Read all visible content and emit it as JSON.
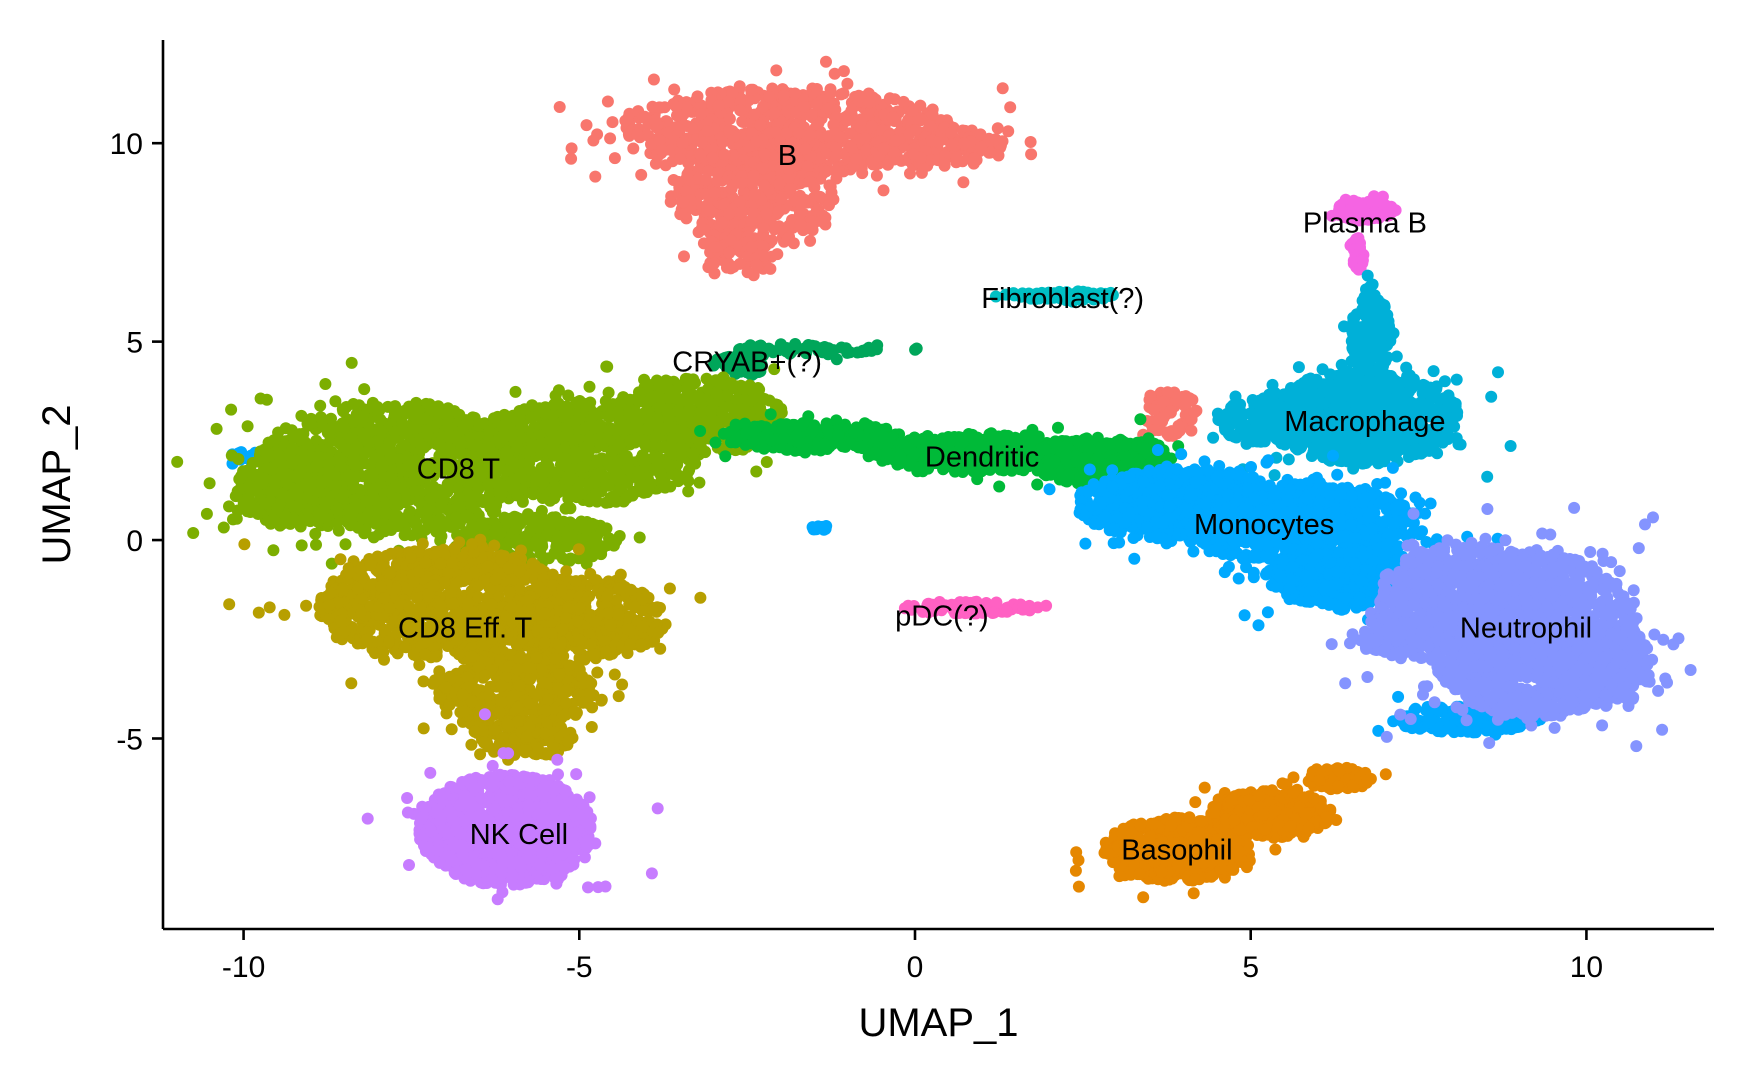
{
  "chart_data": {
    "type": "scatter",
    "xlabel": "UMAP_1",
    "ylabel": "UMAP_2",
    "xlim": [
      -11.2,
      11.9
    ],
    "ylim": [
      -9.8,
      12.6
    ],
    "xticks": [
      -10,
      -5,
      0,
      5,
      10
    ],
    "yticks": [
      -5,
      0,
      5,
      10
    ],
    "xtick_labels": [
      "-10",
      "-5",
      "0",
      "5",
      "10"
    ],
    "ytick_labels": [
      "-5",
      "0",
      "5",
      "10"
    ],
    "grid": false,
    "legend": "none",
    "clusters": [
      {
        "label": "B",
        "label_pos": [
          -1.9,
          9.7
        ],
        "color": "#F8766D",
        "points": 1400,
        "blobs": [
          {
            "cx": -1.9,
            "cy": 10.3,
            "rx": 2.5,
            "ry": 1.1
          },
          {
            "cx": -2.4,
            "cy": 8.6,
            "rx": 1.2,
            "ry": 1.2
          },
          {
            "cx": -2.6,
            "cy": 7.2,
            "rx": 0.5,
            "ry": 0.6
          },
          {
            "cx": 0.4,
            "cy": 9.9,
            "rx": 1.0,
            "ry": 0.5
          }
        ]
      },
      {
        "label": "Plasma B",
        "label_pos": [
          6.7,
          8.0
        ],
        "color": "#F564E3",
        "points": 160,
        "blobs": [
          {
            "cx": 6.7,
            "cy": 8.3,
            "rx": 0.45,
            "ry": 0.25
          },
          {
            "cx": 6.6,
            "cy": 7.2,
            "rx": 0.08,
            "ry": 0.5
          }
        ]
      },
      {
        "label": "Fibroblast(?)",
        "label_pos": [
          2.2,
          6.1
        ],
        "color": "#00BFC4",
        "points": 70,
        "blobs": [
          {
            "cx": 2.2,
            "cy": 6.15,
            "rx": 0.8,
            "ry": 0.12
          }
        ]
      },
      {
        "label": "CRYAB+(?)",
        "label_pos": [
          -2.5,
          4.5
        ],
        "color": "#00A65A",
        "points": 120,
        "blobs": [
          {
            "cx": -1.6,
            "cy": 4.8,
            "rx": 1.1,
            "ry": 0.15
          },
          {
            "cx": -2.6,
            "cy": 4.4,
            "rx": 0.4,
            "ry": 0.3
          }
        ]
      },
      {
        "label": "CD8 T",
        "label_pos": [
          -6.8,
          1.8
        ],
        "color": "#7CAE00",
        "points": 2600,
        "blobs": [
          {
            "cx": -7.8,
            "cy": 1.8,
            "rx": 2.0,
            "ry": 1.7
          },
          {
            "cx": -5.0,
            "cy": 2.2,
            "rx": 1.8,
            "ry": 1.3
          },
          {
            "cx": -3.2,
            "cy": 3.1,
            "rx": 1.3,
            "ry": 1.0
          },
          {
            "cx": -9.3,
            "cy": 1.3,
            "rx": 0.8,
            "ry": 1.0
          },
          {
            "cx": -5.6,
            "cy": 0.0,
            "rx": 1.3,
            "ry": 0.6
          }
        ]
      },
      {
        "label": "CD8 Eff. T",
        "label_pos": [
          -6.7,
          -2.2
        ],
        "color": "#B79F00",
        "points": 2000,
        "blobs": [
          {
            "cx": -7.0,
            "cy": -1.6,
            "rx": 1.9,
            "ry": 1.4
          },
          {
            "cx": -4.9,
            "cy": -2.0,
            "rx": 1.2,
            "ry": 1.0
          },
          {
            "cx": -6.0,
            "cy": -3.8,
            "rx": 1.2,
            "ry": 1.0
          },
          {
            "cx": -5.8,
            "cy": -5.0,
            "rx": 0.7,
            "ry": 0.5
          }
        ]
      },
      {
        "label": "NK Cell",
        "label_pos": [
          -5.9,
          -7.4
        ],
        "color": "#C77CFF",
        "points": 1100,
        "blobs": [
          {
            "cx": -6.1,
            "cy": -7.3,
            "rx": 1.3,
            "ry": 1.4
          }
        ]
      },
      {
        "label": "Dendritic",
        "label_pos": [
          1.0,
          2.1
        ],
        "color": "#00BA38",
        "points": 1000,
        "blobs": [
          {
            "cx": -1.5,
            "cy": 2.6,
            "rx": 1.4,
            "ry": 0.35
          },
          {
            "cx": 1.0,
            "cy": 2.2,
            "rx": 1.6,
            "ry": 0.5
          },
          {
            "cx": 2.8,
            "cy": 2.0,
            "rx": 1.1,
            "ry": 0.6
          }
        ]
      },
      {
        "label": "Macrophage",
        "label_pos": [
          6.7,
          3.0
        ],
        "color": "#00B0D8",
        "points": 1200,
        "blobs": [
          {
            "cx": 6.7,
            "cy": 3.1,
            "rx": 1.4,
            "ry": 1.2
          },
          {
            "cx": 5.4,
            "cy": 3.0,
            "rx": 0.9,
            "ry": 0.6
          },
          {
            "cx": 6.8,
            "cy": 5.2,
            "rx": 0.3,
            "ry": 1.0
          }
        ]
      },
      {
        "label": "Monocytes",
        "label_pos": [
          5.2,
          0.4
        ],
        "color": "#00A9FF",
        "points": 2200,
        "blobs": [
          {
            "cx": 4.0,
            "cy": 0.9,
            "rx": 1.6,
            "ry": 0.9
          },
          {
            "cx": 5.7,
            "cy": 0.4,
            "rx": 1.8,
            "ry": 1.0
          },
          {
            "cx": 6.6,
            "cy": -1.0,
            "rx": 1.3,
            "ry": 0.7
          },
          {
            "cx": 8.2,
            "cy": -4.5,
            "rx": 1.1,
            "ry": 0.35
          }
        ]
      },
      {
        "label": "Neutrophil",
        "label_pos": [
          9.1,
          -2.2
        ],
        "color": "#8494FF",
        "points": 2400,
        "blobs": [
          {
            "cx": 9.2,
            "cy": -2.4,
            "rx": 1.6,
            "ry": 2.1
          },
          {
            "cx": 8.2,
            "cy": -1.4,
            "rx": 1.3,
            "ry": 1.3
          },
          {
            "cx": 7.4,
            "cy": -2.5,
            "rx": 0.8,
            "ry": 0.5
          },
          {
            "cx": 10.2,
            "cy": -3.2,
            "rx": 0.8,
            "ry": 1.0
          }
        ]
      },
      {
        "label": "pDC(?)",
        "label_pos": [
          0.4,
          -1.9
        ],
        "color": "#FF61C3",
        "points": 110,
        "blobs": [
          {
            "cx": 0.8,
            "cy": -1.7,
            "rx": 1.0,
            "ry": 0.15
          }
        ]
      },
      {
        "label": "Basophil",
        "label_pos": [
          3.9,
          -7.8
        ],
        "color": "#E58700",
        "points": 1000,
        "blobs": [
          {
            "cx": 3.9,
            "cy": -7.8,
            "rx": 1.1,
            "ry": 0.8
          },
          {
            "cx": 5.3,
            "cy": -6.9,
            "rx": 0.9,
            "ry": 0.6
          },
          {
            "cx": 6.3,
            "cy": -6.0,
            "rx": 0.5,
            "ry": 0.3
          }
        ]
      }
    ],
    "minor_blobs": [
      {
        "color": "#F8766D",
        "cx": 3.8,
        "cy": 3.2,
        "rx": 0.4,
        "ry": 0.6,
        "points": 70
      },
      {
        "color": "#00A9FF",
        "cx": -1.4,
        "cy": 0.3,
        "rx": 0.15,
        "ry": 0.08,
        "points": 12
      },
      {
        "color": "#00A9FF",
        "cx": -10.0,
        "cy": 2.1,
        "rx": 0.2,
        "ry": 0.15,
        "points": 15
      }
    ]
  }
}
